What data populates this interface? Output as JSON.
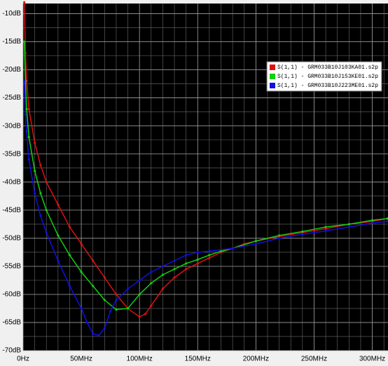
{
  "chart_data": {
    "type": "line",
    "xlim": [
      0,
      313.5
    ],
    "ylim": [
      -70,
      -8.2
    ],
    "xticks": [
      {
        "value": 0,
        "label": "0Hz"
      },
      {
        "value": 50,
        "label": "50MHz"
      },
      {
        "value": 100,
        "label": "100MHz"
      },
      {
        "value": 150,
        "label": "150MHz"
      },
      {
        "value": 200,
        "label": "200MHz"
      },
      {
        "value": 250,
        "label": "250MHz"
      },
      {
        "value": 300,
        "label": "300MHz"
      }
    ],
    "yticks": [
      {
        "value": -10,
        "label": "-10dB"
      },
      {
        "value": -15,
        "label": "-15dB"
      },
      {
        "value": -20,
        "label": "-20dB"
      },
      {
        "value": -25,
        "label": "-25dB"
      },
      {
        "value": -30,
        "label": "-30dB"
      },
      {
        "value": -35,
        "label": "-35dB"
      },
      {
        "value": -40,
        "label": "-40dB"
      },
      {
        "value": -45,
        "label": "-45dB"
      },
      {
        "value": -50,
        "label": "-50dB"
      },
      {
        "value": -55,
        "label": "-55dB"
      },
      {
        "value": -60,
        "label": "-60dB"
      },
      {
        "value": -65,
        "label": "-65dB"
      },
      {
        "value": -70,
        "label": "-70dB"
      }
    ],
    "grid": true,
    "series": [
      {
        "name": "S(1,1) - GRM033B10J103KA01.s2p",
        "color": "#e01010",
        "x": [
          1,
          2,
          3,
          5,
          10,
          15,
          20,
          30,
          40,
          50,
          60,
          70,
          80,
          90,
          100,
          105,
          110,
          120,
          130,
          140,
          150,
          160,
          170,
          180,
          190,
          200,
          220,
          240,
          260,
          280,
          300,
          313
        ],
        "values": [
          -8,
          -17,
          -22,
          -27,
          -33,
          -37,
          -40,
          -44,
          -48,
          -51,
          -54,
          -57,
          -60,
          -62.5,
          -64,
          -63.5,
          -62,
          -59,
          -57,
          -55.5,
          -54.5,
          -53.5,
          -52.5,
          -51.8,
          -51,
          -50.5,
          -49.7,
          -49,
          -48.3,
          -47.5,
          -47,
          -46.5
        ]
      },
      {
        "name": "S(1,1) - GRM033B10J153KE01.s2p",
        "color": "#10d010",
        "x": [
          1,
          2,
          3,
          5,
          10,
          15,
          20,
          30,
          40,
          50,
          60,
          70,
          80,
          90,
          100,
          110,
          120,
          130,
          140,
          150,
          160,
          170,
          180,
          200,
          220,
          240,
          260,
          280,
          300,
          313
        ],
        "values": [
          -15,
          -22,
          -27,
          -32,
          -38,
          -42,
          -45,
          -49.5,
          -53,
          -56,
          -58.5,
          -61,
          -62.7,
          -62.5,
          -60,
          -58,
          -56.5,
          -55.5,
          -54.5,
          -53.8,
          -53,
          -52.3,
          -51.8,
          -50.5,
          -49.5,
          -48.8,
          -48,
          -47.5,
          -46.8,
          -46.5
        ]
      },
      {
        "name": "S(1,1) - GRM033B10J223ME01.s2p",
        "color": "#1010e0",
        "x": [
          1,
          2,
          3,
          5,
          10,
          15,
          20,
          30,
          40,
          50,
          55,
          60,
          65,
          70,
          75,
          80,
          90,
          100,
          110,
          120,
          130,
          140,
          150,
          160,
          180,
          200,
          220,
          240,
          260,
          280,
          300,
          313
        ],
        "values": [
          -22,
          -28,
          -31,
          -36,
          -42,
          -46,
          -49,
          -54,
          -58.5,
          -62.5,
          -65,
          -67,
          -67.3,
          -66,
          -63,
          -61,
          -59,
          -57.5,
          -56,
          -55,
          -54,
          -53,
          -52.5,
          -52.3,
          -51.8,
          -51,
          -50,
          -49.3,
          -48.7,
          -48,
          -47.3,
          -47
        ]
      }
    ]
  }
}
